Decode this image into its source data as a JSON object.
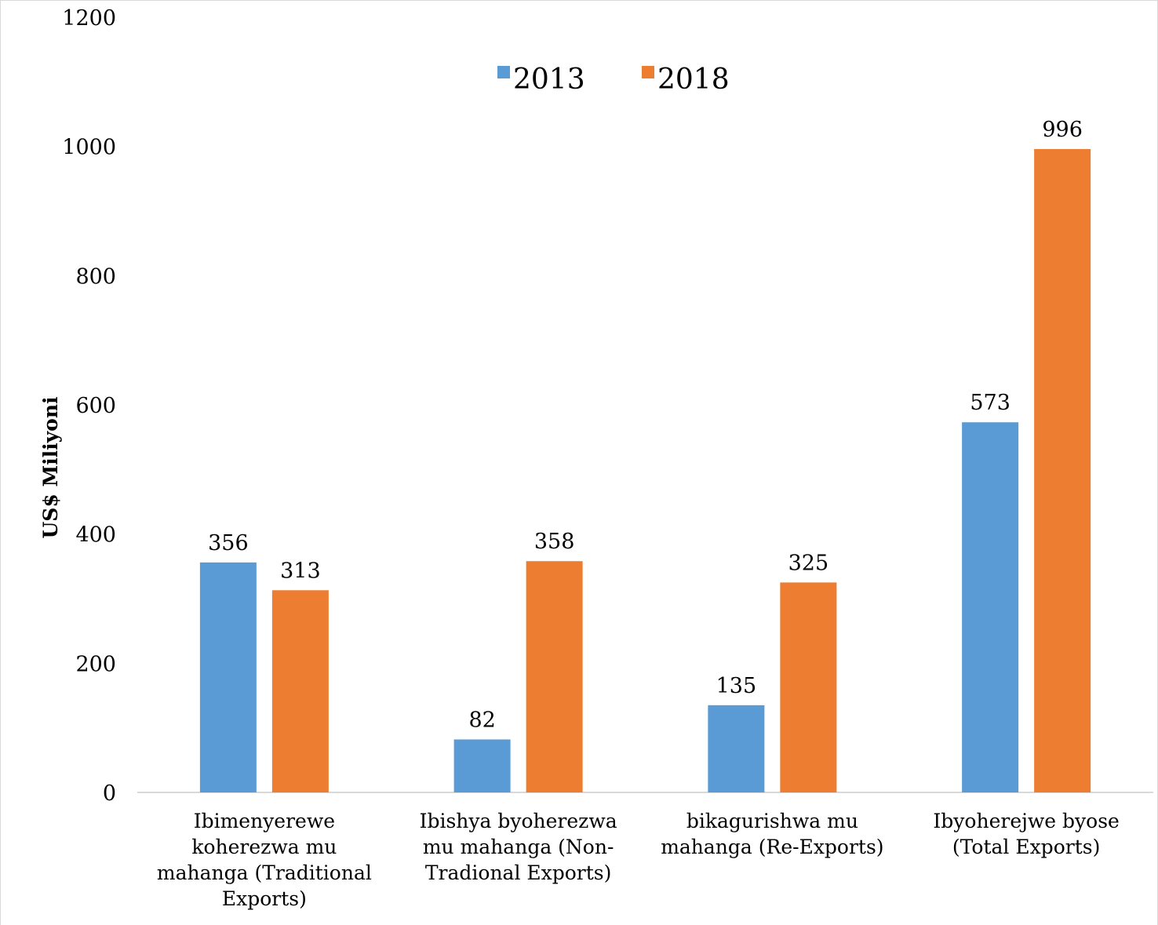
{
  "chart_data": {
    "type": "bar",
    "title": "",
    "xlabel": "",
    "ylabel": "US$ Miliyoni",
    "ylim": [
      0,
      1200
    ],
    "yticks": [
      0,
      200,
      400,
      600,
      800,
      1000,
      1200
    ],
    "categories": [
      [
        "Ibimenyerewe",
        "koherezwa mu",
        "mahanga (Traditional",
        "Exports)"
      ],
      [
        "Ibishya byoherezwa",
        "mu mahanga (Non-",
        "Tradional Exports)"
      ],
      [
        "bikagurishwa mu",
        "mahanga (Re-Exports)"
      ],
      [
        "Ibyoherejwe byose",
        "(Total Exports)"
      ]
    ],
    "series": [
      {
        "name": "2013",
        "color": "#5b9bd5",
        "values": [
          356,
          82,
          135,
          573
        ]
      },
      {
        "name": "2018",
        "color": "#ed7d31",
        "values": [
          313,
          358,
          325,
          996
        ]
      }
    ],
    "legend_position": "top-center",
    "grid": false,
    "data_labels": true
  }
}
